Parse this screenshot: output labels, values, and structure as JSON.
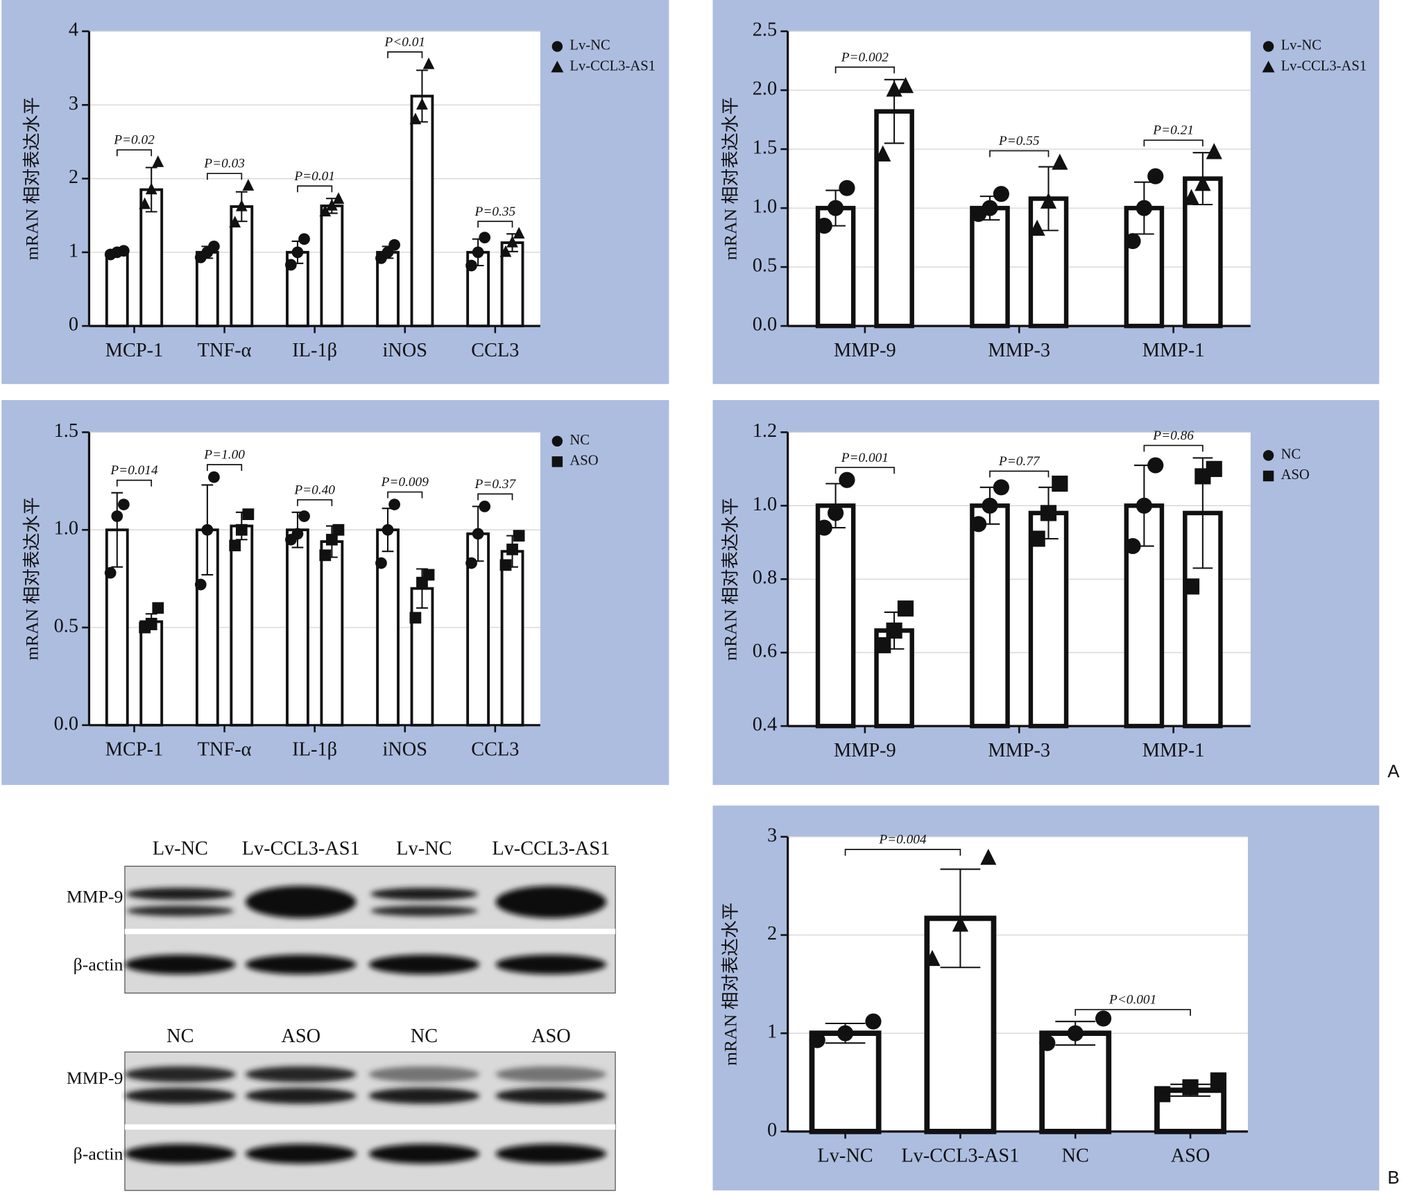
{
  "chart_data": [
    {
      "type": "bar",
      "ylabel": "mRAN 相对表达水平",
      "background": "#adbde0",
      "grid": true,
      "categories": [
        "MCP-1",
        "TNF-α",
        "IL-1β",
        "iNOS",
        "CCL3"
      ],
      "ylim": [
        0,
        4
      ],
      "yticks": [
        0,
        1,
        2,
        3,
        4
      ],
      "series": [
        {
          "name": "Lv-NC",
          "marker": "circle",
          "color": "#ffffff",
          "values": [
            1,
            1,
            1,
            1,
            1
          ],
          "errors": [
            0.03,
            0.08,
            0.15,
            0.08,
            0.18
          ],
          "points": [
            [
              0.97,
              1.0,
              1.02
            ],
            [
              0.93,
              1.0,
              1.08
            ],
            [
              0.83,
              1.0,
              1.18
            ],
            [
              0.92,
              1.0,
              1.1
            ],
            [
              0.82,
              1.0,
              1.2
            ]
          ]
        },
        {
          "name": "Lv-CCL3-AS1",
          "marker": "triangle",
          "color": "#ffffff",
          "values": [
            1.85,
            1.62,
            1.63,
            3.12,
            1.13
          ],
          "errors": [
            0.3,
            0.2,
            0.1,
            0.35,
            0.12
          ],
          "points": [
            [
              1.65,
              1.85,
              2.22
            ],
            [
              1.4,
              1.62,
              1.9
            ],
            [
              1.55,
              1.63,
              1.72
            ],
            [
              2.8,
              3.0,
              3.55
            ],
            [
              1.0,
              1.13,
              1.25
            ]
          ]
        }
      ],
      "annotations": [
        "P=0.02",
        "P=0.03",
        "P=0.01",
        "P<0.01",
        "P=0.35"
      ]
    },
    {
      "type": "bar",
      "ylabel": "mRAN 相对表达水平",
      "background": "#adbde0",
      "grid": true,
      "categories": [
        "MMP-9",
        "MMP-3",
        "MMP-1"
      ],
      "ylim": [
        0,
        2.5
      ],
      "yticks": [
        {
          "value": 0,
          "label": "0.0"
        },
        0.5,
        {
          "value": 1,
          "label": "1.0"
        },
        1.5,
        {
          "value": 2,
          "label": "2.0"
        },
        2.5
      ],
      "series": [
        {
          "name": "Lv-NC",
          "marker": "circle",
          "color": "#ffffff",
          "values": [
            1,
            1,
            1
          ],
          "errors": [
            0.15,
            0.1,
            0.22
          ],
          "points": [
            [
              0.85,
              1.0,
              1.17
            ],
            [
              0.95,
              1.0,
              1.12
            ],
            [
              0.72,
              1.0,
              1.27
            ]
          ]
        },
        {
          "name": "Lv-CCL3-AS1",
          "marker": "triangle",
          "color": "#ffffff",
          "values": [
            1.82,
            1.08,
            1.25
          ],
          "errors": [
            0.27,
            0.27,
            0.22
          ],
          "points": [
            [
              1.45,
              2.0,
              2.03
            ],
            [
              0.82,
              1.05,
              1.38
            ],
            [
              1.08,
              1.2,
              1.47
            ]
          ]
        }
      ],
      "annotations": [
        "P=0.002",
        "P=0.55",
        "P=0.21"
      ]
    },
    {
      "type": "bar",
      "ylabel": "mRAN 相对表达水平",
      "background": "#adbde0",
      "grid": true,
      "categories": [
        "MCP-1",
        "TNF-α",
        "IL-1β",
        "iNOS",
        "CCL3"
      ],
      "ylim": [
        0,
        1.5
      ],
      "yticks": [
        {
          "value": 0,
          "label": "0.0"
        },
        0.5,
        {
          "value": 1,
          "label": "1.0"
        },
        1.5
      ],
      "series": [
        {
          "name": "NC",
          "marker": "circle",
          "color": "#ffffff",
          "values": [
            1,
            1,
            1,
            1,
            0.98
          ],
          "errors": [
            0.19,
            0.23,
            0.09,
            0.11,
            0.14
          ],
          "points": [
            [
              0.78,
              1.07,
              1.13
            ],
            [
              0.72,
              1.0,
              1.27
            ],
            [
              0.95,
              0.98,
              1.07
            ],
            [
              0.83,
              1.0,
              1.13
            ],
            [
              0.83,
              0.98,
              1.12
            ]
          ]
        },
        {
          "name": "ASO",
          "marker": "square",
          "color": "#ffffff",
          "values": [
            0.53,
            1.02,
            0.94,
            0.7,
            0.89
          ],
          "errors": [
            0.04,
            0.07,
            0.08,
            0.1,
            0.08
          ],
          "points": [
            [
              0.5,
              0.52,
              0.6
            ],
            [
              0.92,
              1.0,
              1.08
            ],
            [
              0.87,
              0.95,
              1.0
            ],
            [
              0.55,
              0.73,
              0.77
            ],
            [
              0.82,
              0.9,
              0.97
            ]
          ]
        }
      ],
      "annotations": [
        "P=0.014",
        "P=1.00",
        "P=0.40",
        "P=0.009",
        "P=0.37"
      ]
    },
    {
      "type": "bar",
      "ylabel": "mRAN 相对表达水平",
      "background": "#adbde0",
      "grid": true,
      "categories": [
        "MMP-9",
        "MMP-3",
        "MMP-1"
      ],
      "ylim": [
        0.4,
        1.2
      ],
      "yticks": [
        0.4,
        0.6,
        0.8,
        {
          "value": 1,
          "label": "1.0"
        },
        1.2
      ],
      "series": [
        {
          "name": "NC",
          "marker": "circle",
          "color": "#ffffff",
          "values": [
            1,
            1,
            1
          ],
          "errors": [
            0.06,
            0.05,
            0.11
          ],
          "points": [
            [
              0.94,
              0.98,
              1.07
            ],
            [
              0.95,
              1.0,
              1.05
            ],
            [
              0.89,
              1.0,
              1.11
            ]
          ]
        },
        {
          "name": "ASO",
          "marker": "square",
          "color": "#ffffff",
          "values": [
            0.66,
            0.98,
            0.98
          ],
          "errors": [
            0.05,
            0.07,
            0.15
          ],
          "points": [
            [
              0.62,
              0.66,
              0.72
            ],
            [
              0.91,
              0.98,
              1.06
            ],
            [
              0.78,
              1.08,
              1.1
            ]
          ]
        }
      ],
      "annotations": [
        "P=0.001",
        "P=0.77",
        "P=0.86"
      ]
    },
    {
      "type": "bar",
      "ylabel": "mRAN 相对表达水平",
      "background": "#adbde0",
      "grid": true,
      "categories": [
        "Lv-NC",
        "Lv-CCL3-AS1",
        "NC",
        "ASO"
      ],
      "ylim": [
        0,
        3
      ],
      "yticks": [
        0,
        1,
        2,
        3
      ],
      "color": "#ffffff",
      "markers": [
        "circle",
        "triangle",
        "circle",
        "square"
      ],
      "values": [
        1,
        2.17,
        1,
        0.42
      ],
      "errors": [
        0.1,
        0.5,
        0.12,
        0.06
      ],
      "points": [
        [
          0.93,
          1.0,
          1.12
        ],
        [
          1.75,
          2.1,
          2.78
        ],
        [
          0.9,
          1.0,
          1.15
        ],
        [
          0.38,
          0.45,
          0.52
        ]
      ],
      "annotations": [
        {
          "text": "P=0.004",
          "categories": [
            "Lv-NC",
            "Lv-CCL3-AS1"
          ]
        },
        {
          "text": "P<0.001",
          "categories": [
            "NC",
            "ASO"
          ]
        }
      ]
    }
  ],
  "blot": {
    "panels": [
      {
        "lanes": [
          "Lv-NC",
          "Lv-CCL3-AS1",
          "Lv-NC",
          "Lv-CCL3-AS1"
        ],
        "rows": [
          "MMP-9",
          "β-actin"
        ]
      },
      {
        "lanes": [
          "NC",
          "ASO",
          "NC",
          "ASO"
        ],
        "rows": [
          "MMP-9",
          "β-actin"
        ]
      }
    ]
  },
  "panel_labels": [
    "A",
    "B"
  ]
}
